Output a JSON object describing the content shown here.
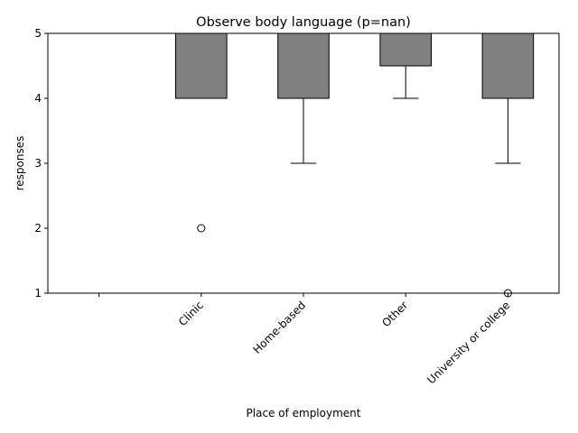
{
  "chart_data": {
    "type": "boxplot",
    "title": "Observe body language (p=nan)",
    "xlabel": "Place of employment",
    "ylabel": "responses",
    "ylim": [
      1,
      5
    ],
    "yticks": [
      1,
      2,
      3,
      4,
      5
    ],
    "categories": [
      "",
      "Clinic",
      "Home-based",
      "Other",
      "University or college"
    ],
    "boxes": [
      null,
      {
        "whisker_low": 4,
        "q1": 4,
        "median": 4,
        "q3": 5,
        "whisker_high": 5,
        "outliers": [
          2
        ]
      },
      {
        "whisker_low": 3,
        "q1": 4,
        "median": 4,
        "q3": 5,
        "whisker_high": 5,
        "outliers": []
      },
      {
        "whisker_low": 4,
        "q1": 4.5,
        "median": 4.5,
        "q3": 5,
        "whisker_high": 5,
        "outliers": []
      },
      {
        "whisker_low": 3,
        "q1": 4,
        "median": 4,
        "q3": 5,
        "whisker_high": 5,
        "outliers": [
          1
        ]
      }
    ],
    "box_color": "#808080",
    "line_color": "#000000",
    "grid": false,
    "xtick_rotation_deg": 45
  }
}
